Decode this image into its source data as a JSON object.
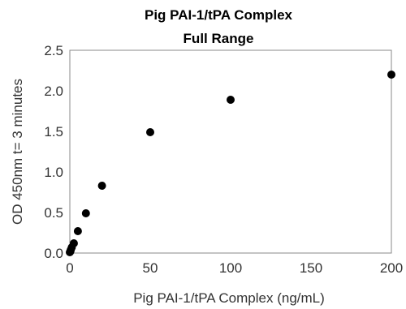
{
  "chart_data": {
    "type": "scatter",
    "title": [
      "Pig  PAI-1/tPA  Complex",
      "Full Range"
    ],
    "xlabel": "Pig PAI-1/tPA Complex  (ng/mL)",
    "ylabel": "OD 450nm  t= 3 minutes",
    "xlim": [
      0,
      200
    ],
    "ylim": [
      0,
      2.5
    ],
    "xticks": [
      0,
      50,
      100,
      150,
      200
    ],
    "yticks": [
      0.0,
      0.5,
      1.0,
      1.5,
      2.0,
      2.5
    ],
    "ytick_labels": [
      "0.0",
      "0.5",
      "1.0",
      "1.5",
      "2.0",
      "2.5"
    ],
    "grid": false,
    "marker_color": "#000000",
    "points": [
      {
        "x": 0,
        "y": 0.01
      },
      {
        "x": 0.3,
        "y": 0.02
      },
      {
        "x": 0.6,
        "y": 0.04
      },
      {
        "x": 1.2,
        "y": 0.07
      },
      {
        "x": 2.5,
        "y": 0.12
      },
      {
        "x": 5,
        "y": 0.27
      },
      {
        "x": 10,
        "y": 0.49
      },
      {
        "x": 20,
        "y": 0.83
      },
      {
        "x": 50,
        "y": 1.49
      },
      {
        "x": 100,
        "y": 1.89
      },
      {
        "x": 200,
        "y": 2.2
      }
    ]
  }
}
